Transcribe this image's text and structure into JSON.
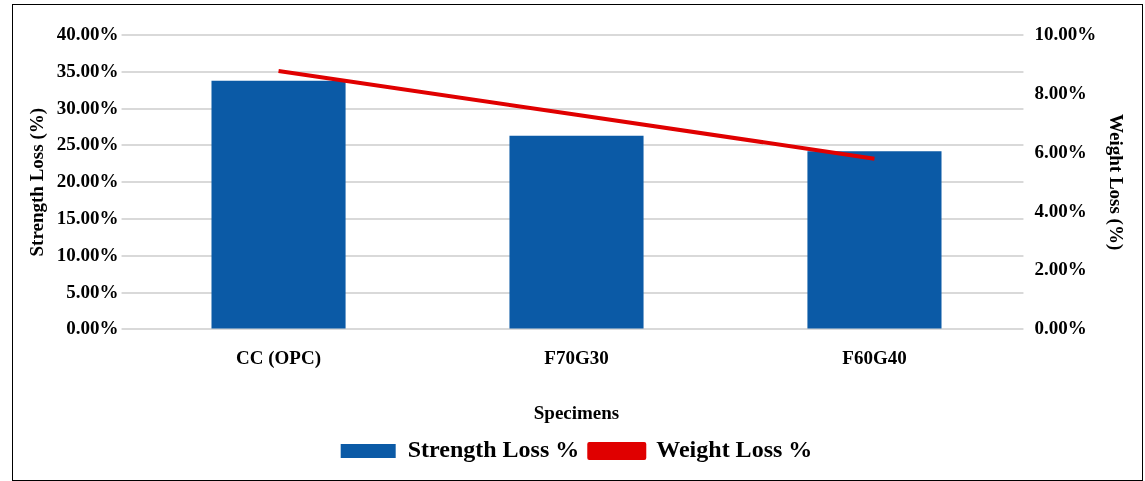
{
  "chart_data": {
    "type": "bar",
    "xlabel": "Specimens",
    "ylabel": "Strength Loss (%)",
    "y2label": "Weight Loss (%)",
    "categories": [
      "CC (OPC)",
      "F70G30",
      "F60G40"
    ],
    "series": [
      {
        "name": "Strength Loss %",
        "color": "#0b5aa6",
        "values": [
          33.8,
          26.3,
          24.2
        ]
      },
      {
        "name": "Weight Loss %",
        "type": "line",
        "axis": "y2",
        "color": "#e00000",
        "values": [
          8.78,
          7.29,
          5.8
        ]
      }
    ],
    "ylim": [
      0,
      40
    ],
    "yticks": [
      {
        "value": 0,
        "label": "0.00%"
      },
      {
        "value": 5,
        "label": "5.00%"
      },
      {
        "value": 10,
        "label": "10.00%"
      },
      {
        "value": 15,
        "label": "15.00%"
      },
      {
        "value": 20,
        "label": "20.00%"
      },
      {
        "value": 25,
        "label": "25.00%"
      },
      {
        "value": 30,
        "label": "30.00%"
      },
      {
        "value": 35,
        "label": "35.00%"
      },
      {
        "value": 40,
        "label": "40.00%"
      }
    ],
    "y2lim": [
      0,
      10
    ],
    "y2ticks": [
      {
        "value": 0,
        "label": "0.00%"
      },
      {
        "value": 2,
        "label": "2.00%"
      },
      {
        "value": 4,
        "label": "4.00%"
      },
      {
        "value": 6,
        "label": "6.00%"
      },
      {
        "value": 8,
        "label": "8.00%"
      },
      {
        "value": 10,
        "label": "10.00%"
      }
    ],
    "grid": "y",
    "legend": "bottom",
    "marker": "none"
  }
}
